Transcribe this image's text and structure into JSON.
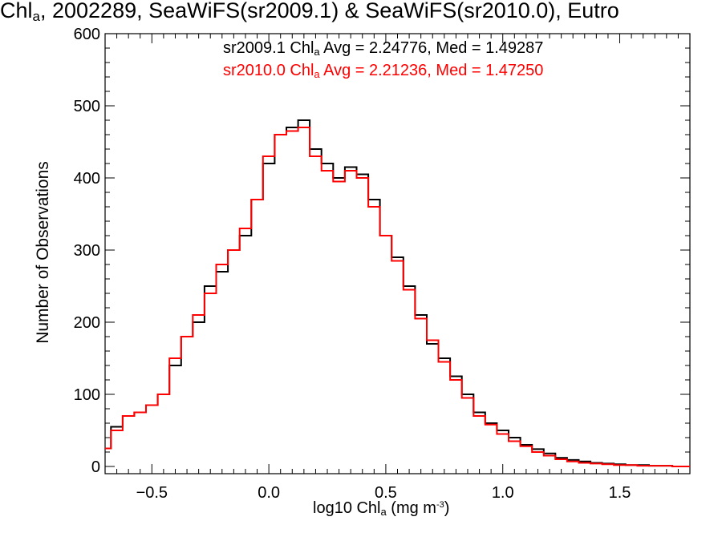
{
  "title": {
    "prefix": "Chl",
    "sub": "a",
    "rest": ", 2002289, SeaWiFS(sr2009.1) & SeaWiFS(sr2010.0), Eutro"
  },
  "legend": [
    {
      "series": "sr2009.1",
      "var": "Chl",
      "sub": "a",
      "stats": "Avg = 2.24776, Med = 1.49287",
      "color": "#000000"
    },
    {
      "series": "sr2010.0",
      "var": "Chl",
      "sub": "a",
      "stats": "Avg = 2.21236, Med = 1.47250",
      "color": "#ff0000"
    }
  ],
  "axes": {
    "xlabel": {
      "pre": "log10 Chl",
      "sub": "a",
      "mid": " (mg m",
      "sup": "-3",
      "post": ")"
    },
    "ylabel": "Number of Observations"
  },
  "chart_data": {
    "type": "line",
    "xlim": [
      -0.7,
      1.8
    ],
    "ylim": [
      -10,
      600
    ],
    "xticks": [
      -0.5,
      0.0,
      0.5,
      1.0,
      1.5
    ],
    "xtick_labels": [
      "−0.5",
      "0.0",
      "0.5",
      "1.0",
      "1.5"
    ],
    "yticks": [
      0,
      100,
      200,
      300,
      400,
      500,
      600
    ],
    "ytick_labels": [
      "0",
      "100",
      "200",
      "300",
      "400",
      "500",
      "600"
    ],
    "grid": false,
    "legend_position": "top",
    "series": [
      {
        "name": "sr2009.1",
        "color": "#000000",
        "points": [
          [
            -0.7,
            25
          ],
          [
            -0.65,
            55
          ],
          [
            -0.6,
            70
          ],
          [
            -0.55,
            75
          ],
          [
            -0.5,
            85
          ],
          [
            -0.45,
            100
          ],
          [
            -0.4,
            140
          ],
          [
            -0.35,
            180
          ],
          [
            -0.3,
            200
          ],
          [
            -0.25,
            250
          ],
          [
            -0.2,
            270
          ],
          [
            -0.15,
            300
          ],
          [
            -0.1,
            320
          ],
          [
            -0.05,
            370
          ],
          [
            0.0,
            420
          ],
          [
            0.05,
            460
          ],
          [
            0.1,
            470
          ],
          [
            0.15,
            480
          ],
          [
            0.2,
            440
          ],
          [
            0.25,
            420
          ],
          [
            0.3,
            400
          ],
          [
            0.35,
            415
          ],
          [
            0.4,
            405
          ],
          [
            0.45,
            370
          ],
          [
            0.5,
            320
          ],
          [
            0.55,
            290
          ],
          [
            0.6,
            250
          ],
          [
            0.65,
            210
          ],
          [
            0.7,
            170
          ],
          [
            0.75,
            150
          ],
          [
            0.8,
            125
          ],
          [
            0.85,
            100
          ],
          [
            0.9,
            75
          ],
          [
            0.95,
            60
          ],
          [
            1.0,
            50
          ],
          [
            1.05,
            40
          ],
          [
            1.1,
            30
          ],
          [
            1.15,
            24
          ],
          [
            1.2,
            18
          ],
          [
            1.25,
            12
          ],
          [
            1.3,
            9
          ],
          [
            1.35,
            7
          ],
          [
            1.4,
            5
          ],
          [
            1.45,
            4
          ],
          [
            1.5,
            3
          ],
          [
            1.55,
            2
          ],
          [
            1.6,
            2
          ],
          [
            1.65,
            1
          ],
          [
            1.7,
            1
          ],
          [
            1.75,
            0
          ],
          [
            1.8,
            0
          ]
        ]
      },
      {
        "name": "sr2010.0",
        "color": "#ff0000",
        "points": [
          [
            -0.7,
            25
          ],
          [
            -0.65,
            50
          ],
          [
            -0.6,
            70
          ],
          [
            -0.55,
            75
          ],
          [
            -0.5,
            85
          ],
          [
            -0.45,
            100
          ],
          [
            -0.4,
            150
          ],
          [
            -0.35,
            180
          ],
          [
            -0.3,
            210
          ],
          [
            -0.25,
            240
          ],
          [
            -0.2,
            280
          ],
          [
            -0.15,
            300
          ],
          [
            -0.1,
            330
          ],
          [
            -0.05,
            370
          ],
          [
            0.0,
            430
          ],
          [
            0.05,
            460
          ],
          [
            0.1,
            465
          ],
          [
            0.15,
            470
          ],
          [
            0.2,
            430
          ],
          [
            0.25,
            410
          ],
          [
            0.3,
            395
          ],
          [
            0.35,
            410
          ],
          [
            0.4,
            400
          ],
          [
            0.45,
            360
          ],
          [
            0.5,
            320
          ],
          [
            0.55,
            285
          ],
          [
            0.6,
            245
          ],
          [
            0.65,
            205
          ],
          [
            0.7,
            175
          ],
          [
            0.75,
            145
          ],
          [
            0.8,
            120
          ],
          [
            0.85,
            95
          ],
          [
            0.9,
            70
          ],
          [
            0.95,
            58
          ],
          [
            1.0,
            45
          ],
          [
            1.05,
            35
          ],
          [
            1.1,
            28
          ],
          [
            1.15,
            20
          ],
          [
            1.2,
            15
          ],
          [
            1.25,
            10
          ],
          [
            1.3,
            7
          ],
          [
            1.35,
            5
          ],
          [
            1.4,
            4
          ],
          [
            1.45,
            3
          ],
          [
            1.5,
            2
          ],
          [
            1.55,
            2
          ],
          [
            1.6,
            1
          ],
          [
            1.65,
            1
          ],
          [
            1.7,
            1
          ],
          [
            1.75,
            0
          ],
          [
            1.8,
            0
          ]
        ]
      }
    ]
  }
}
